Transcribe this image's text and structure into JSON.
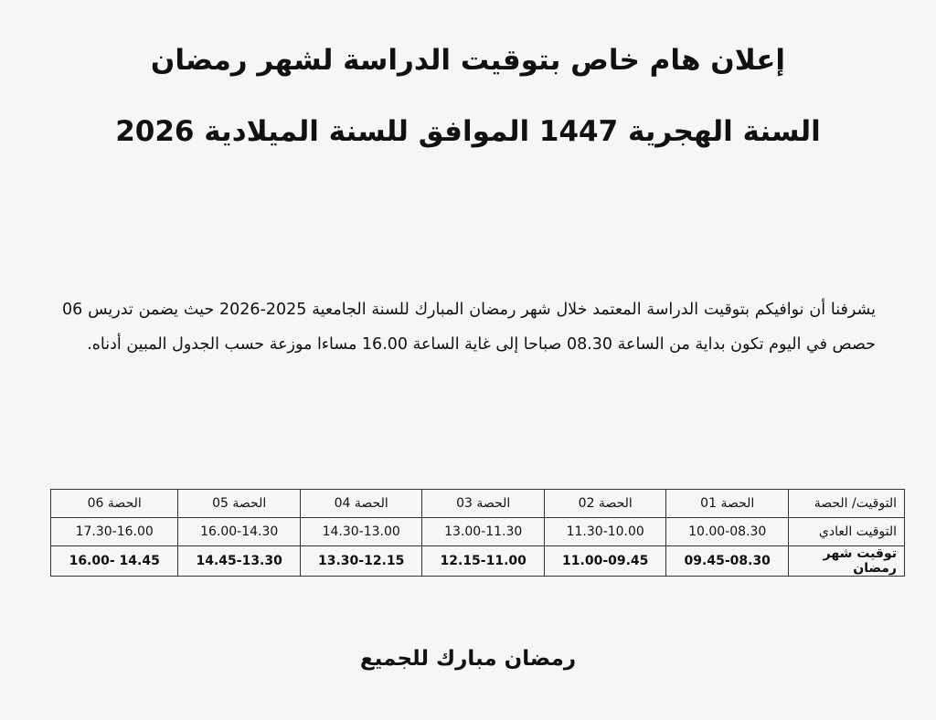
{
  "title_line1": "إعلان هام خاص بتوقيت الدراسة لشهر رمضان",
  "title_line2": "السنة الهجرية 1447 الموافق للسنة الميلادية 2026",
  "paragraph": "يشرفنا أن نوافيكم بتوقيت الدراسة المعتمد خلال شهر رمضان المبارك للسنة الجامعية 2025-2026 حيث يضمن تدريس 06 حصص في اليوم تكون بداية من الساعة 08.30 صباحا إلى غاية الساعة 16.00 مساءا موزعة حسب الجدول المبين أدناه.",
  "table": {
    "headers": [
      "التوقيت/ الحصة",
      "الحصة 01",
      "الحصة 02",
      "الحصة 03",
      "الحصة 04",
      "الحصة 05",
      "الحصة 06"
    ],
    "rows": [
      {
        "label": "التوقيت العادي",
        "cells": [
          "10.00-08.30",
          "11.30-10.00",
          "13.00-11.30",
          "14.30-13.00",
          "16.00-14.30",
          "17.30-16.00"
        ]
      },
      {
        "label": "توقيت شهر رمضان",
        "cells": [
          "09.45-08.30",
          "11.00-09.45",
          "12.15-11.00",
          "13.30-12.15",
          "14.45-13.30",
          "16.00- 14.45"
        ]
      }
    ]
  },
  "closing": "رمضان مبارك للجميع"
}
